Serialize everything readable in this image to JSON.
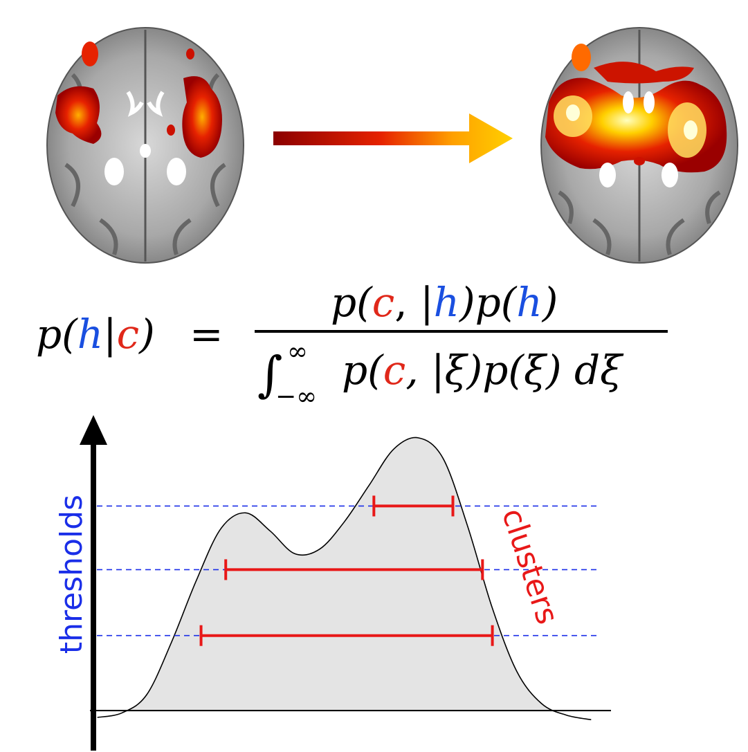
{
  "colors": {
    "h_var": "#1a4fe0",
    "c_var": "#e0281a",
    "threshold_line": "#1a2ee8",
    "cluster_bar": "#e81818",
    "fill": "#e4e4e4",
    "heat_dark": "#8b0000",
    "heat_mid": "#e62200",
    "heat_bright": "#ffd000"
  },
  "icons": {
    "left_brain": "brain-axial-slice-icon",
    "right_brain": "brain-axial-slice-icon",
    "arrow": "gradient-arrow-icon"
  },
  "equation": {
    "lhs_p": "p(",
    "lhs_h": "h",
    "lhs_bar": "|",
    "lhs_c": "c",
    "lhs_close": ")",
    "equals": "=",
    "num_p1": "p(",
    "num_c": "c",
    "num_mid": ", |",
    "num_h1": "h",
    "num_mid2": ")p(",
    "num_h2": "h",
    "num_close": ")",
    "den_integral": "∫",
    "den_upper": "∞",
    "den_lower": "−∞",
    "den_p1": "p(",
    "den_c": "c",
    "den_rest": ", |ξ)p(ξ) dξ"
  },
  "chart_data": {
    "type": "area",
    "title": "",
    "ylabel": "thresholds",
    "series_label": "clusters",
    "x": [
      0,
      5,
      10,
      15,
      20,
      25,
      30,
      35,
      40,
      45,
      50,
      55,
      60,
      65,
      70,
      75,
      80,
      85,
      90,
      95,
      100
    ],
    "y": [
      2,
      4,
      12,
      35,
      62,
      85,
      92,
      84,
      74,
      76,
      88,
      104,
      120,
      125,
      116,
      86,
      50,
      22,
      8,
      3,
      1
    ],
    "thresholds": [
      {
        "level": 38,
        "cluster_x": [
          21,
          80
        ]
      },
      {
        "level": 67,
        "cluster_x": [
          26,
          78
        ]
      },
      {
        "level": 95,
        "cluster_x": [
          56,
          72
        ]
      }
    ],
    "ylim": [
      -5,
      135
    ],
    "xlim": [
      -5,
      105
    ]
  }
}
